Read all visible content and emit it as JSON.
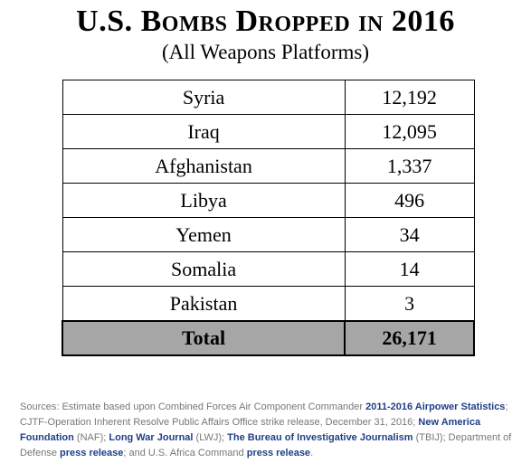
{
  "title": "U.S. Bombs Dropped in 2016",
  "subtitle": "(All Weapons Platforms)",
  "chart_data": {
    "type": "table",
    "title": "U.S. Bombs Dropped in 2016",
    "subtitle": "(All Weapons Platforms)",
    "rows": [
      {
        "country": "Syria",
        "value": "12,192"
      },
      {
        "country": "Iraq",
        "value": "12,095"
      },
      {
        "country": "Afghanistan",
        "value": "1,337"
      },
      {
        "country": "Libya",
        "value": "496"
      },
      {
        "country": "Yemen",
        "value": "34"
      },
      {
        "country": "Somalia",
        "value": "14"
      },
      {
        "country": "Pakistan",
        "value": "3"
      }
    ],
    "total": {
      "label": "Total",
      "value": "26,171"
    }
  },
  "sources": {
    "s1": "Sources: Estimate based upon Combined Forces Air Component Commander ",
    "l1": "2011-2016 Airpower Statistics",
    "s2": "; CJTF-Operation Inherent Resolve Public Affairs Office strike release, December 31, 2016; ",
    "l2": "New America Foundation",
    "s3": " (NAF); ",
    "l3": "Long War Journal",
    "s4": " (LWJ); ",
    "l4": "The Bureau of Investigative Journalism",
    "s5": " (TBIJ); Department of Defense ",
    "l5": "press release",
    "s6": "; and U.S. Africa Command ",
    "l6": "press release",
    "s7": "."
  }
}
